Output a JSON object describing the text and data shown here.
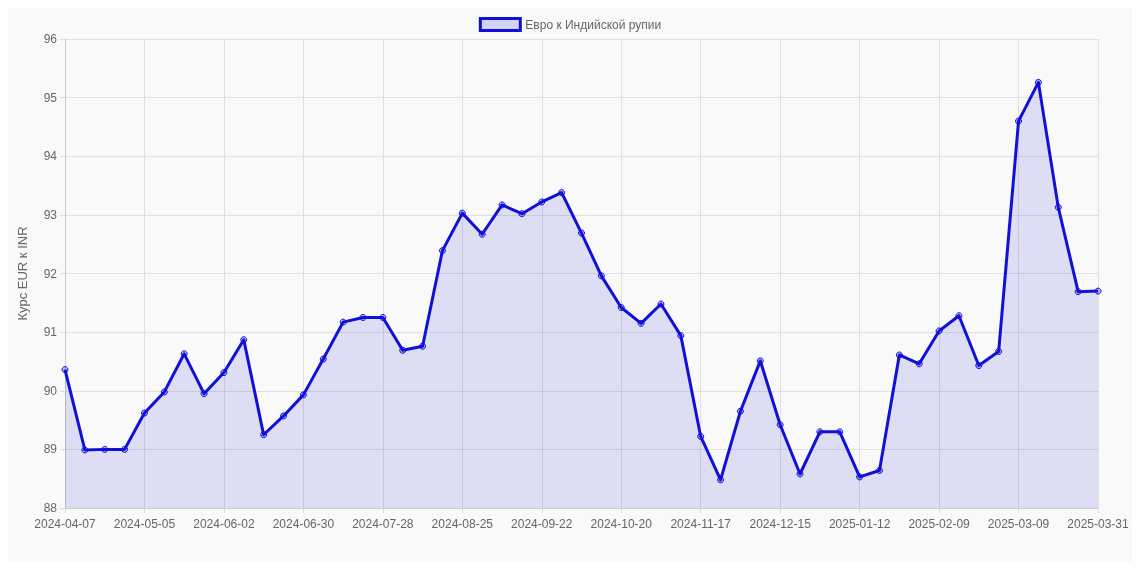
{
  "chart_data": {
    "type": "area",
    "ylabel": "Курс EUR к INR",
    "categories": [
      "2024-04-07",
      null,
      null,
      null,
      "2024-05-05",
      null,
      null,
      null,
      "2024-06-02",
      null,
      null,
      null,
      "2024-06-30",
      null,
      null,
      null,
      "2024-07-28",
      null,
      null,
      null,
      "2024-08-25",
      null,
      null,
      null,
      "2024-09-22",
      null,
      null,
      null,
      "2024-10-20",
      null,
      null,
      null,
      "2024-11-17",
      null,
      null,
      null,
      "2024-12-15",
      null,
      null,
      null,
      "2025-01-12",
      null,
      null,
      null,
      "2025-02-09",
      null,
      null,
      null,
      "2025-03-09",
      null,
      null,
      null,
      "2025-03-31"
    ],
    "series": [
      {
        "name": "Евро к Индийской рупии",
        "color": "#1010d8",
        "values": [
          90.36,
          88.99,
          89.0,
          89.0,
          89.62,
          89.98,
          90.63,
          89.95,
          90.31,
          90.87,
          89.25,
          89.57,
          89.93,
          90.54,
          91.17,
          91.25,
          91.25,
          90.69,
          90.76,
          92.39,
          93.03,
          92.67,
          93.17,
          93.02,
          93.22,
          93.38,
          92.69,
          91.96,
          91.42,
          91.15,
          91.48,
          90.94,
          89.22,
          88.48,
          89.65,
          90.51,
          89.42,
          88.58,
          89.3,
          89.3,
          88.53,
          88.64,
          90.61,
          90.46,
          91.02,
          91.28,
          90.43,
          90.67,
          94.6,
          95.26,
          93.13,
          91.69,
          91.7
        ]
      }
    ],
    "ylim": [
      88,
      96
    ],
    "yticks": [
      88,
      89,
      90,
      91,
      92,
      93,
      94,
      95,
      96
    ],
    "grid": true,
    "legend": "top",
    "marker": "circle",
    "line_style": "solid"
  }
}
